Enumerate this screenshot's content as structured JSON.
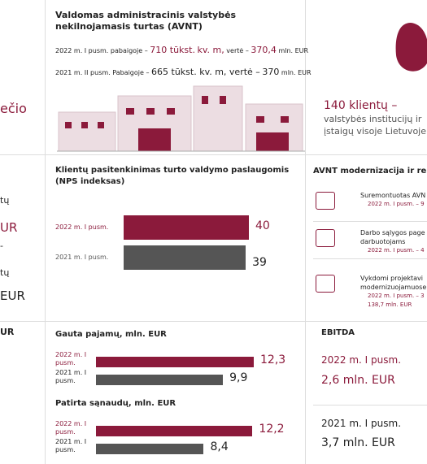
{
  "left_fragments": [
    "ečio",
    "tų",
    "UR",
    "-",
    "tų",
    "EUR",
    "UR"
  ],
  "avnt": {
    "title": "Valdomas administracinis valstybės nekilnojamasis turtas (AVNT)",
    "line1": [
      "2022 m. I pusm. pabaigoje –",
      "710 tūkst.",
      "kv. m,",
      "vertė –",
      "370,4",
      "mln. EUR"
    ],
    "line2": [
      "2021 m. II pusm. Pabaigoje –",
      "665 tūkst. kv. m, vertė –",
      "370",
      "mln. EUR"
    ]
  },
  "clients": {
    "title": "140 klientų –",
    "lines": [
      "valstybės institucijų ir",
      "įstaigų visoje Lietuvoje"
    ]
  },
  "nps": {
    "title": "Klientų pasitenkinimas turto valdymo paslaugomis (NPS indeksas)",
    "categories": [
      "2022 m. I pusm.",
      "2021 m. I pusm."
    ],
    "values": [
      40,
      39
    ]
  },
  "revenue": {
    "title": "Gauta pajamų, mln. EUR",
    "categories": [
      "2022 m. I pusm.",
      "2021 m. I pusm."
    ],
    "values": [
      12.3,
      9.9
    ],
    "value_labels": [
      "12,3",
      "9,9"
    ]
  },
  "costs": {
    "title": "Patirta sąnaudų, mln. EUR",
    "categories": [
      "2022 m. I pusm.",
      "2021 m. I pusm."
    ],
    "values": [
      12.2,
      8.4
    ],
    "value_labels": [
      "12,2",
      "8,4"
    ]
  },
  "modernization": {
    "title": "AVNT modernizacija ir re",
    "items": [
      [
        "Suremontuotas AVN",
        "2022 m. I pusm. – 9"
      ],
      [
        "Darbo sąlygos page",
        "darbuotojams",
        "2022 m. I pusm. – 4"
      ],
      [
        "Vykdomi projektavi",
        "modernizuojamuose",
        "2022 m. I pusm. – 3",
        "138,7 mln. EUR"
      ]
    ]
  },
  "ebitda": {
    "title": "EBITDA",
    "items": [
      [
        "2022 m. I pusm.",
        "2,6 mln. EUR"
      ],
      [
        "2021 m. I pusm.",
        "3,7 mln. EUR"
      ]
    ]
  }
}
